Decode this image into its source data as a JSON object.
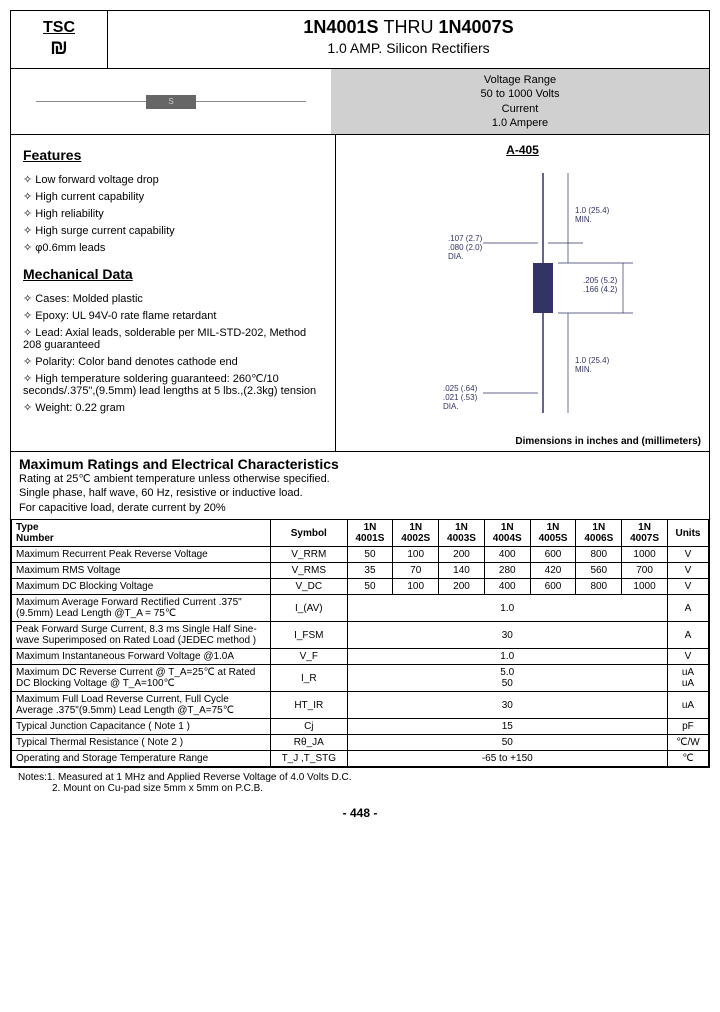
{
  "logo": {
    "text": "TSC"
  },
  "title": {
    "range": "1N4001S THRU 1N4007S",
    "thru": "THRU",
    "left": "1N4001S",
    "right": "1N4007S",
    "sub": "1.0 AMP. Silicon Rectifiers"
  },
  "spec_box": {
    "l1": "Voltage Range",
    "l2": "50 to 1000 Volts",
    "l3": "Current",
    "l4": "1.0 Ampere"
  },
  "package": "A-405",
  "features_heading": "Features",
  "features": [
    "Low forward voltage drop",
    "High current capability",
    "High reliability",
    "High surge current capability",
    "φ0.6mm leads"
  ],
  "mech_heading": "Mechanical Data",
  "mechanical": [
    "Cases: Molded plastic",
    "Epoxy: UL 94V-0 rate flame retardant",
    "Lead: Axial leads, solderable per MIL-STD-202, Method 208 guaranteed",
    "Polarity: Color band denotes cathode end",
    "High temperature soldering guaranteed: 260℃/10 seconds/.375\",(9.5mm) lead lengths at 5 lbs.,(2.3kg) tension",
    "Weight: 0.22 gram"
  ],
  "dim_labels": {
    "a": ".107 (2.7)\n.080 (2.0)\nDIA.",
    "b": "1.0 (25.4)\nMIN.",
    "c": ".205 (5.2)\n.166 (4.2)",
    "d": "1.0 (25.4)\nMIN.",
    "e": ".025 (.64)\n.021 (.53)\nDIA."
  },
  "dim_note": "Dimensions in inches and (millimeters)",
  "ratings": {
    "title": "Maximum Ratings and Electrical Characteristics",
    "sub1": "Rating at 25℃ ambient temperature unless otherwise specified.",
    "sub2": "Single phase, half wave, 60 Hz, resistive or inductive load.",
    "sub3": "For capacitive load, derate current by 20%"
  },
  "table": {
    "headers": [
      "Type Number",
      "Symbol",
      "1N 4001S",
      "1N 4002S",
      "1N 4003S",
      "1N 4004S",
      "1N 4005S",
      "1N 4006S",
      "1N 4007S",
      "Units"
    ],
    "rows": [
      {
        "param": "Maximum Recurrent Peak Reverse Voltage",
        "sym": "V_RRM",
        "vals": [
          "50",
          "100",
          "200",
          "400",
          "600",
          "800",
          "1000"
        ],
        "unit": "V"
      },
      {
        "param": "Maximum RMS Voltage",
        "sym": "V_RMS",
        "vals": [
          "35",
          "70",
          "140",
          "280",
          "420",
          "560",
          "700"
        ],
        "unit": "V"
      },
      {
        "param": "Maximum DC Blocking Voltage",
        "sym": "V_DC",
        "vals": [
          "50",
          "100",
          "200",
          "400",
          "600",
          "800",
          "1000"
        ],
        "unit": "V"
      },
      {
        "param": "Maximum Average Forward Rectified Current .375\"(9.5mm) Lead Length @T_A = 75℃",
        "sym": "I_(AV)",
        "span": "1.0",
        "unit": "A"
      },
      {
        "param": "Peak Forward Surge Current, 8.3 ms Single Half Sine-wave Superimposed on Rated Load (JEDEC method )",
        "sym": "I_FSM",
        "span": "30",
        "unit": "A"
      },
      {
        "param": "Maximum Instantaneous Forward Voltage @1.0A",
        "sym": "V_F",
        "span": "1.0",
        "unit": "V"
      },
      {
        "param": "Maximum DC Reverse Current @ T_A=25℃ at Rated DC Blocking Voltage @ T_A=100℃",
        "sym": "I_R",
        "span": "5.0\n50",
        "unit": "uA\nuA"
      },
      {
        "param": "Maximum Full Load Reverse Current, Full Cycle Average .375\"(9.5mm) Lead Length @T_A=75℃",
        "sym": "HT_IR",
        "span": "30",
        "unit": "uA"
      },
      {
        "param": "Typical Junction Capacitance ( Note 1 )",
        "sym": "Cj",
        "span": "15",
        "unit": "pF"
      },
      {
        "param": "Typical Thermal Resistance ( Note 2 )",
        "sym": "Rθ_JA",
        "span": "50",
        "unit": "℃/W"
      },
      {
        "param": "Operating and Storage Temperature Range",
        "sym": "T_J ,T_STG",
        "span": "-65 to +150",
        "unit": "℃"
      }
    ]
  },
  "notes": {
    "n1": "Notes:1. Measured at 1 MHz and Applied Reverse Voltage of 4.0 Volts D.C.",
    "n2": "2. Mount on Cu-pad size 5mm x 5mm on P.C.B."
  },
  "page_num": "- 448 -"
}
